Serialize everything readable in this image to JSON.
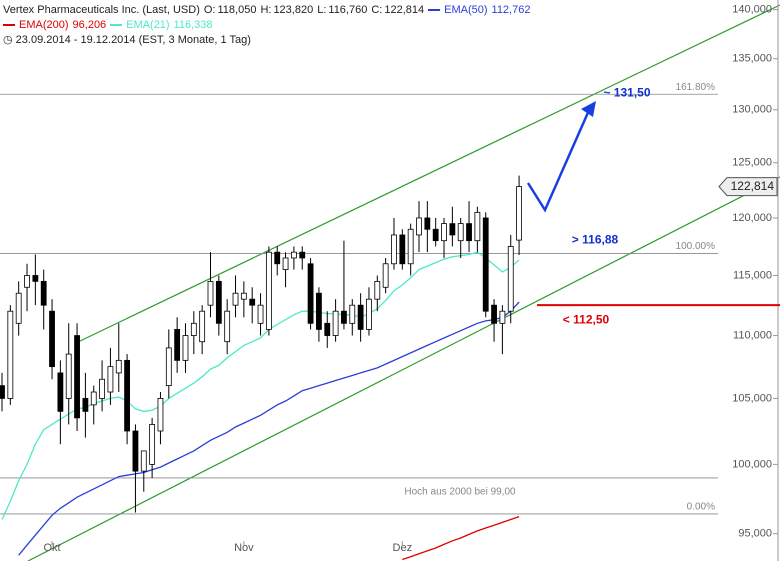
{
  "chart_data": {
    "type": "candlestick",
    "title": "Vertex Pharmaceuticals Inc. (Last, USD)",
    "period": "23.09.2014 - 19.12.2014 (EST, 3 Monate, 1 Tag)",
    "quote": [
      {
        "name": "O:",
        "value": 118.05,
        "label": "118,050"
      },
      {
        "name": "H:",
        "value": 123.82,
        "label": "123,820"
      },
      {
        "name": "L:",
        "value": 116.76,
        "label": "116,760"
      },
      {
        "name": "C:",
        "value": 122.814,
        "label": "122,814"
      }
    ],
    "categories": [
      null,
      null,
      null,
      null,
      null,
      null,
      "Okt",
      null,
      null,
      null,
      null,
      null,
      null,
      null,
      null,
      null,
      null,
      null,
      null,
      null,
      null,
      null,
      null,
      null,
      null,
      null,
      null,
      null,
      null,
      "Nov",
      null,
      null,
      null,
      null,
      null,
      null,
      null,
      null,
      null,
      null,
      null,
      null,
      null,
      null,
      null,
      null,
      null,
      null,
      "Dez",
      null,
      null,
      null,
      null,
      null,
      null,
      null,
      null,
      null,
      null,
      null,
      null,
      null,
      null
    ],
    "open": [
      106,
      105,
      111,
      114,
      115,
      114.5,
      112,
      107,
      105,
      110,
      105,
      104.5,
      105,
      105.5,
      107,
      108,
      102.5,
      99.5,
      100,
      102.5,
      106,
      110.5,
      108,
      110,
      109.5,
      112.5,
      114.5,
      109.5,
      112.5,
      113,
      113,
      111,
      110.5,
      117,
      115.5,
      116.5,
      117,
      116,
      113.5,
      111,
      110,
      112,
      111,
      112.5,
      110.5,
      113,
      114,
      116,
      118.5,
      116,
      118.5,
      120,
      119,
      118,
      119.5,
      118,
      119.5,
      118,
      120,
      112.5,
      111,
      112,
      118.05
    ],
    "high": [
      107,
      112.5,
      114.5,
      116,
      116.8,
      115.5,
      113,
      108,
      111,
      111,
      107,
      106,
      108,
      109,
      111,
      108.5,
      103,
      101,
      103.5,
      105.5,
      110.5,
      111.5,
      111,
      112,
      112.5,
      117,
      115,
      113,
      115,
      114.5,
      114,
      113.5,
      117.5,
      117.5,
      117,
      117.5,
      117.5,
      116.5,
      114,
      112,
      113,
      118,
      113,
      113.5,
      114,
      115,
      116.5,
      120,
      119,
      119.5,
      121.5,
      121.5,
      120,
      120,
      121,
      120,
      121.5,
      121,
      120.5,
      113,
      112.5,
      118.5,
      123.82
    ],
    "low": [
      104,
      104.5,
      110,
      112,
      112.5,
      110.5,
      106.5,
      101.5,
      103,
      102.5,
      102,
      103,
      104,
      104.5,
      105.5,
      101.5,
      96.5,
      98,
      99,
      101.5,
      105,
      107,
      107,
      108.5,
      108.5,
      111.5,
      110,
      108.5,
      111.5,
      111.5,
      111,
      110,
      110,
      115,
      114,
      115.5,
      115.5,
      110.5,
      109.5,
      109,
      109.5,
      110.5,
      110,
      109.5,
      110,
      112,
      113.5,
      115.5,
      115.5,
      115,
      117,
      117,
      117.5,
      116.5,
      117.5,
      116.5,
      117,
      117,
      111.5,
      109.5,
      108.5,
      111,
      116.76
    ],
    "close": [
      105,
      112,
      113.5,
      115,
      114.5,
      112.5,
      107.5,
      104,
      108.5,
      103.5,
      104,
      105.5,
      106.5,
      107.5,
      108,
      102.5,
      99.5,
      101,
      103,
      105,
      109,
      108,
      110,
      111,
      112,
      114.5,
      111,
      112,
      113.5,
      113.5,
      112.5,
      112.5,
      117,
      116,
      116.5,
      117,
      116.5,
      111,
      110.5,
      110,
      112,
      111,
      112.5,
      110.5,
      113,
      114.5,
      116,
      118.5,
      116,
      119,
      120,
      119,
      118,
      119.5,
      118.5,
      119.5,
      118,
      120.5,
      112,
      111,
      112,
      117.5,
      122.814
    ],
    "candle_up_color": "#ffffff",
    "candle_down_color": "#000000",
    "series": [
      {
        "name": "EMA(50)",
        "color": "#2a3fd8",
        "last_label": "112,762",
        "values": [
          null,
          null,
          93.5,
          94.2,
          94.9,
          95.6,
          96.3,
          96.8,
          97.2,
          97.6,
          97.9,
          98.2,
          98.5,
          98.8,
          99.1,
          99.2,
          99.3,
          99.4,
          99.6,
          99.8,
          100.1,
          100.4,
          100.7,
          101,
          101.4,
          101.8,
          102.1,
          102.4,
          102.8,
          103.1,
          103.4,
          103.7,
          104.1,
          104.5,
          104.8,
          105.2,
          105.6,
          105.8,
          106,
          106.2,
          106.4,
          106.6,
          106.8,
          107,
          107.2,
          107.4,
          107.7,
          108,
          108.3,
          108.6,
          108.9,
          109.2,
          109.5,
          109.8,
          110.1,
          110.4,
          110.7,
          111,
          111.2,
          111.3,
          111.5,
          112,
          112.762
        ]
      },
      {
        "name": "EMA(200)",
        "color": "#e00000",
        "last_label": "96,206",
        "values": [
          null,
          null,
          null,
          null,
          null,
          null,
          null,
          null,
          null,
          null,
          null,
          null,
          null,
          null,
          null,
          null,
          null,
          null,
          null,
          null,
          null,
          null,
          null,
          null,
          null,
          null,
          null,
          null,
          null,
          null,
          null,
          null,
          null,
          null,
          null,
          null,
          null,
          null,
          null,
          null,
          null,
          null,
          null,
          null,
          null,
          null,
          null,
          null,
          93.2,
          93.4,
          93.6,
          93.8,
          94,
          94.25,
          94.5,
          94.7,
          94.95,
          95.2,
          95.4,
          95.6,
          95.8,
          96,
          96.206
        ]
      },
      {
        "name": "EMA(21)",
        "color": "#4fe8c8",
        "last_label": "116,338",
        "values": [
          96,
          97.3,
          98.8,
          100,
          101.5,
          102.6,
          103,
          103.4,
          103.8,
          104.2,
          104.3,
          104.6,
          104.8,
          105,
          105.1,
          104.8,
          104.2,
          104,
          104.1,
          104.4,
          105,
          105.4,
          105.8,
          106.2,
          106.7,
          107.3,
          107.6,
          108.2,
          108.7,
          109.2,
          109.5,
          109.8,
          110.5,
          110.9,
          111.3,
          111.7,
          112,
          112,
          111.9,
          111.8,
          111.8,
          111.7,
          111.7,
          111.5,
          111.8,
          112.2,
          112.9,
          113.7,
          114.2,
          114.8,
          115.5,
          115.8,
          116.1,
          116.4,
          116.6,
          116.7,
          116.8,
          117,
          116.5,
          115.9,
          115.3,
          115.7,
          116.338
        ]
      }
    ],
    "ylim": [
      93.1,
      141
    ],
    "log_scale": true,
    "yticks": [
      {
        "value": 95,
        "label": "95,000"
      },
      {
        "value": 100,
        "label": "100,000"
      },
      {
        "value": 105,
        "label": "105,000"
      },
      {
        "value": 110,
        "label": "110,000"
      },
      {
        "value": 115,
        "label": "115,000"
      },
      {
        "value": 120,
        "label": "120,000"
      },
      {
        "value": 125,
        "label": "125,000"
      },
      {
        "value": 130,
        "label": "130,000"
      },
      {
        "value": 135,
        "label": "135,000"
      },
      {
        "value": 140,
        "label": "140,000"
      }
    ],
    "levels": [
      {
        "value": 131.5,
        "name": "161.80%"
      },
      {
        "value": 116.88,
        "name": "100.00%"
      },
      {
        "value": 96.4,
        "name": "0.00%"
      },
      {
        "value": 99,
        "name": "Hoch aus 2000 bei 99,00"
      }
    ],
    "targets": [
      {
        "value": 131.5,
        "label": "~ 131,50",
        "color": "#1030d0"
      },
      {
        "value": 116.88,
        "label": "> 116,88",
        "color": "#1030d0"
      },
      {
        "value": 112.5,
        "label": "< 112,50",
        "color": "#e00000"
      }
    ],
    "last_price": {
      "value": 122.814,
      "label": "122,814"
    }
  }
}
